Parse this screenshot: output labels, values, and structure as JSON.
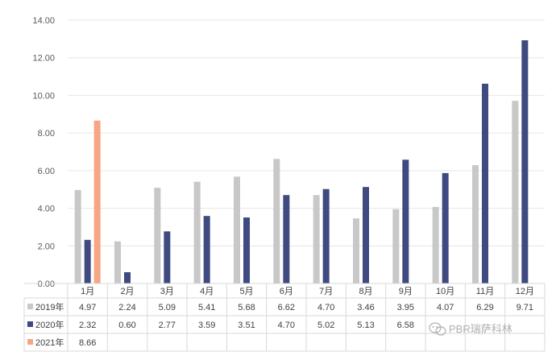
{
  "chart_data": {
    "type": "bar",
    "title": "",
    "xlabel": "",
    "ylabel": "",
    "ylim": [
      0,
      14
    ],
    "yticks": [
      "0.00",
      "2.00",
      "4.00",
      "6.00",
      "8.00",
      "10.00",
      "12.00",
      "14.00"
    ],
    "categories": [
      "1月",
      "2月",
      "3月",
      "4月",
      "5月",
      "6月",
      "7月",
      "8月",
      "9月",
      "10月",
      "11月",
      "12月"
    ],
    "series": [
      {
        "name": "2019年",
        "color": "#c8c8c8",
        "values": [
          4.97,
          2.24,
          5.09,
          5.41,
          5.68,
          6.62,
          4.7,
          3.46,
          3.95,
          4.07,
          6.29,
          9.71
        ],
        "labels": [
          "4.97",
          "2.24",
          "5.09",
          "5.41",
          "5.68",
          "6.62",
          "4.70",
          "3.46",
          "3.95",
          "4.07",
          "6.29",
          "9.71"
        ]
      },
      {
        "name": "2020年",
        "color": "#3f4a80",
        "values": [
          2.32,
          0.6,
          2.77,
          3.59,
          3.51,
          4.7,
          5.02,
          5.13,
          6.58,
          5.87,
          10.62,
          12.93
        ],
        "labels": [
          "2.32",
          "0.60",
          "2.77",
          "3.59",
          "3.51",
          "4.70",
          "5.02",
          "5.13",
          "6.58",
          "",
          "",
          ""
        ]
      },
      {
        "name": "2021年",
        "color": "#f7a582",
        "values": [
          8.66,
          null,
          null,
          null,
          null,
          null,
          null,
          null,
          null,
          null,
          null,
          null
        ],
        "labels": [
          "8.66",
          "",
          "",
          "",
          "",
          "",
          "",
          "",
          "",
          "",
          "",
          ""
        ]
      }
    ],
    "grid": true,
    "legend": "data-table"
  },
  "watermark": {
    "text": "PBR瑞萨科林",
    "icon": "wechat-icon"
  }
}
